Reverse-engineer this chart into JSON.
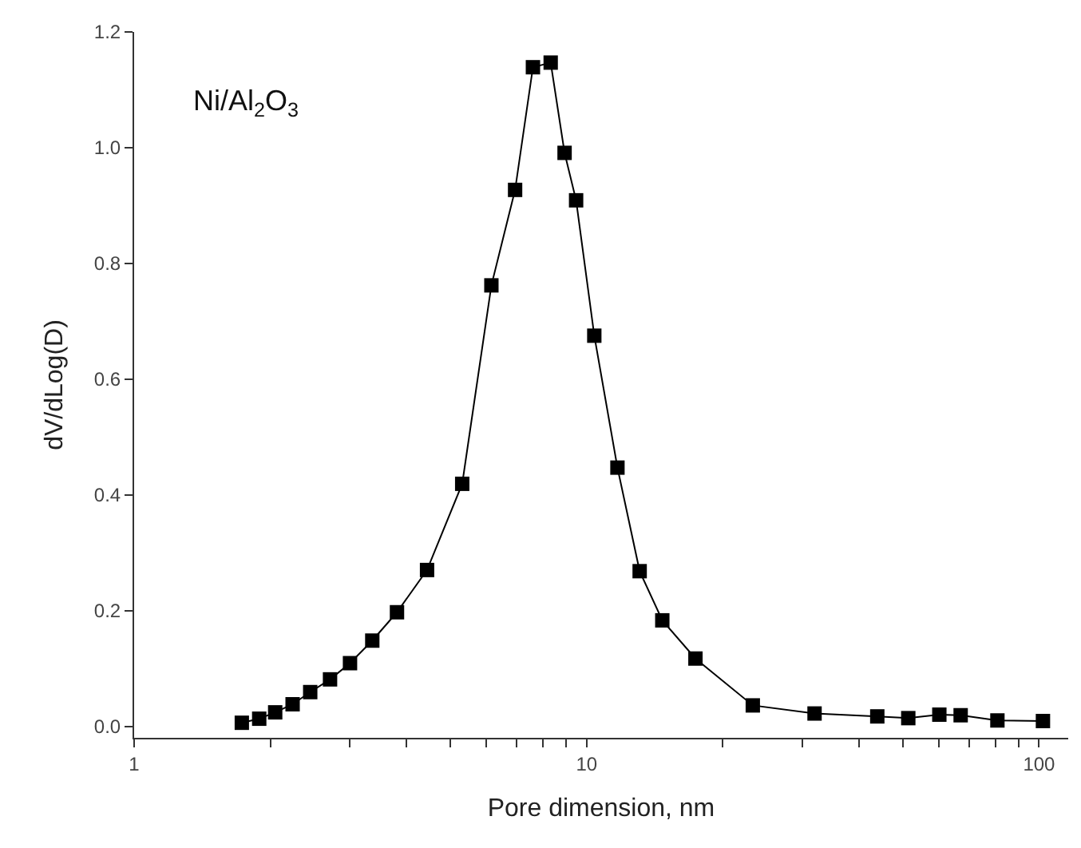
{
  "chart_data": {
    "type": "line",
    "xlabel": "Pore dimension, nm",
    "ylabel": "dV/dLog(D)",
    "annotations": [
      "Ni/Al$_{2}$O$_{3}$"
    ],
    "log": "x",
    "marker": "square",
    "line_style": "solid",
    "x": [
      1.73,
      1.89,
      2.05,
      2.24,
      2.45,
      2.71,
      3.0,
      3.36,
      3.81,
      4.44,
      5.31,
      6.16,
      6.95,
      7.61,
      8.33,
      8.94,
      9.48,
      10.4,
      11.7,
      13.1,
      14.7,
      17.4,
      23.3,
      31.9,
      43.9,
      51.4,
      60.2,
      67.1,
      80.9,
      102
    ],
    "series": [
      {
        "color": "#000000",
        "values": [
          0.006,
          0.013,
          0.024,
          0.038,
          0.059,
          0.081,
          0.109,
          0.148,
          0.197,
          0.27,
          0.419,
          0.762,
          0.927,
          1.139,
          1.147,
          0.991,
          0.909,
          0.675,
          0.447,
          0.268,
          0.183,
          0.117,
          0.036,
          0.022,
          0.017,
          0.014,
          0.02,
          0.019,
          0.01,
          0.009
        ]
      }
    ],
    "xlim": [
      1,
      116
    ],
    "ylim": [
      -0.02,
      1.2
    ],
    "xticks": [
      1,
      {
        "value": 2,
        "label": null
      },
      {
        "value": 3,
        "label": null
      },
      {
        "value": 4,
        "label": null
      },
      {
        "value": 5,
        "label": null
      },
      {
        "value": 6,
        "label": null
      },
      {
        "value": 7,
        "label": null
      },
      {
        "value": 8,
        "label": null
      },
      {
        "value": 9,
        "label": null
      },
      10,
      {
        "value": 20,
        "label": null
      },
      {
        "value": 30,
        "label": null
      },
      {
        "value": 40,
        "label": null
      },
      {
        "value": 50,
        "label": null
      },
      {
        "value": 60,
        "label": null
      },
      {
        "value": 70,
        "label": null
      },
      {
        "value": 80,
        "label": null
      },
      {
        "value": 90,
        "label": null
      },
      100
    ],
    "yticks": [
      {
        "value": 0,
        "label": "0.0"
      },
      {
        "value": 0.2,
        "label": "0.2"
      },
      {
        "value": 0.4,
        "label": "0.4"
      },
      {
        "value": 0.6,
        "label": "0.6"
      },
      {
        "value": 0.8,
        "label": "0.8"
      },
      {
        "value": 1.0,
        "label": "1.0"
      },
      {
        "value": 1.2,
        "label": "1.2"
      }
    ]
  }
}
